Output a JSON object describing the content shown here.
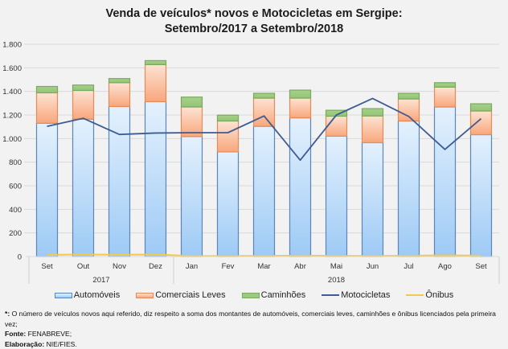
{
  "chart_data": {
    "type": "bar",
    "subtype": "stacked-bar-with-lines",
    "title_line1": "Venda de veículos* novos e Motocicletas em Sergipe:",
    "title_line2": "Setembro/2017 a Setembro/2018",
    "categories": [
      "Set",
      "Out",
      "Nov",
      "Dez",
      "Jan",
      "Fev",
      "Mar",
      "Abr",
      "Mai",
      "Jun",
      "Jul",
      "Ago",
      "Set"
    ],
    "groups": [
      {
        "label": "2017",
        "count": 4
      },
      {
        "label": "2018",
        "count": 9
      }
    ],
    "ylim": [
      0,
      1800
    ],
    "yticks": [
      {
        "value": 0,
        "label": "0"
      },
      {
        "value": 200,
        "label": "200"
      },
      {
        "value": 400,
        "label": "400"
      },
      {
        "value": 600,
        "label": "600"
      },
      {
        "value": 800,
        "label": "800"
      },
      {
        "value": 1000,
        "label": "1.000"
      },
      {
        "value": 1200,
        "label": "1.200"
      },
      {
        "value": 1400,
        "label": "1.400"
      },
      {
        "value": 1600,
        "label": "1.600"
      },
      {
        "value": 1800,
        "label": "1.800"
      }
    ],
    "grid": true,
    "legend_position": "bottom",
    "series": [
      {
        "name": "Automóveis",
        "kind": "bar",
        "color_top": "#e4f1fd",
        "color_bottom": "#9dcaf5",
        "border": "#5a86ba",
        "values": [
          1130,
          1165,
          1272,
          1313,
          1017,
          887,
          1104,
          1176,
          1020,
          965,
          1149,
          1268,
          1033
        ]
      },
      {
        "name": "Comerciais Leves",
        "kind": "bar",
        "color_top": "#fde3d3",
        "color_bottom": "#f8a77c",
        "border": "#e48c58",
        "values": [
          258,
          243,
          202,
          314,
          251,
          262,
          239,
          167,
          170,
          227,
          187,
          168,
          201
        ]
      },
      {
        "name": "Caminhões",
        "kind": "bar",
        "color_top": "#a6d08a",
        "color_bottom": "#93c576",
        "border": "#7ba95e",
        "values": [
          54,
          46,
          35,
          34,
          84,
          50,
          41,
          68,
          50,
          62,
          48,
          38,
          61
        ]
      },
      {
        "name": "Motocicletas",
        "kind": "line",
        "color": "#3e5c94",
        "values": [
          1104,
          1172,
          1035,
          1047,
          1050,
          1050,
          1192,
          817,
          1200,
          1340,
          1188,
          908,
          1169
        ]
      },
      {
        "name": "Ônibus",
        "kind": "line",
        "color": "#f2c94c",
        "values": [
          14,
          18,
          15,
          17,
          5,
          4,
          6,
          8,
          6,
          5,
          7,
          10,
          8
        ]
      }
    ]
  },
  "footnote": {
    "note_marker": "*:",
    "note_text": " O número de veículos novos aqui referido, diz respeito a soma dos montantes de automóveis, comerciais leves, caminhões e ônibus licenciados pela primeira vez;",
    "source_label": "Fonte:",
    "source_text": " FENABREVE;",
    "author_label": "Elaboração:",
    "author_text": " NIE/FIES."
  }
}
